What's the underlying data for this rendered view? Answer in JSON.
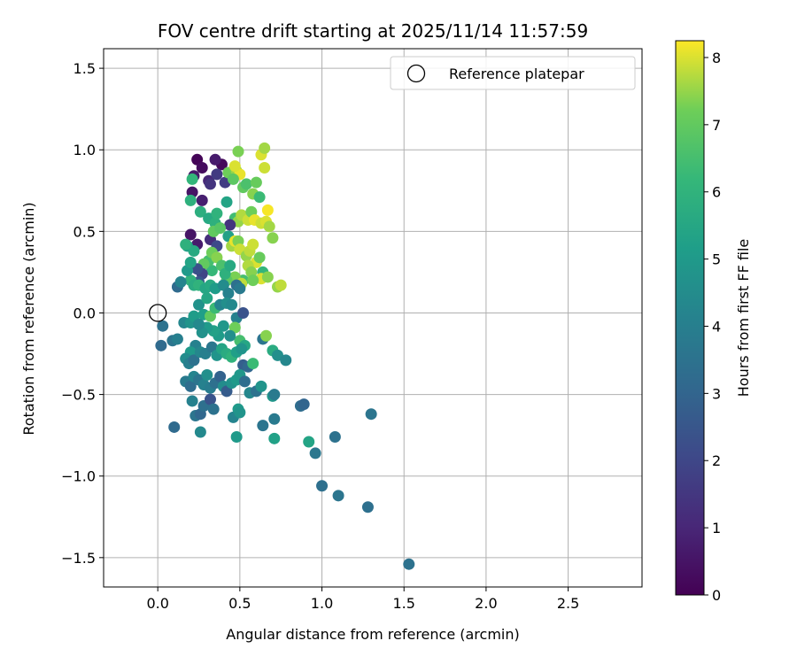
{
  "chart_data": {
    "type": "scatter",
    "title": "FOV centre drift starting at 2025/11/14 11:57:59",
    "xlabel": "Angular distance from reference (arcmin)",
    "ylabel": "Rotation from reference (arcmin)",
    "xlim": [
      -0.33,
      2.95
    ],
    "ylim": [
      -1.68,
      1.62
    ],
    "xticks": [
      0.0,
      0.5,
      1.0,
      1.5,
      2.0,
      2.5
    ],
    "xtick_labels": [
      "0.0",
      "0.5",
      "1.0",
      "1.5",
      "2.0",
      "2.5"
    ],
    "yticks": [
      -1.5,
      -1.0,
      -0.5,
      0.0,
      0.5,
      1.0,
      1.5
    ],
    "ytick_labels": [
      "−1.5",
      "−1.0",
      "−0.5",
      "0.0",
      "0.5",
      "1.0",
      "1.5"
    ],
    "grid": true,
    "legend": {
      "label": "Reference platepar",
      "location": "top-right"
    },
    "reference_point": {
      "x": 0.0,
      "y": 0.0
    },
    "colorbar": {
      "label": "Hours from first FF file",
      "min": 0,
      "max": 8.25,
      "ticks": [
        0,
        1,
        2,
        3,
        4,
        5,
        6,
        7,
        8
      ],
      "tick_labels": [
        "0",
        "1",
        "2",
        "3",
        "4",
        "5",
        "6",
        "7",
        "8"
      ],
      "colormap": "viridis"
    },
    "points": [
      [
        0.24,
        0.94,
        0.1
      ],
      [
        0.27,
        0.89,
        0.3
      ],
      [
        0.39,
        0.91,
        0.2
      ],
      [
        0.35,
        0.94,
        0.7
      ],
      [
        0.22,
        0.84,
        0.6
      ],
      [
        0.31,
        0.81,
        1.0
      ],
      [
        0.21,
        0.74,
        0.5
      ],
      [
        0.27,
        0.69,
        0.8
      ],
      [
        0.32,
        0.79,
        1.4
      ],
      [
        0.36,
        0.85,
        1.6
      ],
      [
        0.41,
        0.8,
        1.7
      ],
      [
        0.43,
        0.86,
        7.2
      ],
      [
        0.49,
        0.99,
        7.3
      ],
      [
        0.48,
        0.87,
        7.5
      ],
      [
        0.5,
        0.85,
        8.1
      ],
      [
        0.46,
        0.82,
        6.9
      ],
      [
        0.47,
        0.9,
        8.0
      ],
      [
        0.52,
        0.77,
        7.0
      ],
      [
        0.54,
        0.79,
        6.6
      ],
      [
        0.58,
        0.73,
        7.4
      ],
      [
        0.6,
        0.8,
        7.1
      ],
      [
        0.63,
        0.97,
        8.0
      ],
      [
        0.65,
        1.01,
        7.6
      ],
      [
        0.65,
        0.89,
        7.9
      ],
      [
        0.62,
        0.71,
        6.3
      ],
      [
        0.21,
        0.82,
        6.1
      ],
      [
        0.2,
        0.69,
        5.9
      ],
      [
        0.26,
        0.62,
        5.8
      ],
      [
        0.31,
        0.58,
        5.6
      ],
      [
        0.35,
        0.55,
        5.9
      ],
      [
        0.36,
        0.61,
        6.0
      ],
      [
        0.42,
        0.68,
        5.4
      ],
      [
        0.47,
        0.58,
        6.4
      ],
      [
        0.49,
        0.56,
        7.5
      ],
      [
        0.51,
        0.6,
        7.7
      ],
      [
        0.44,
        0.54,
        1.4
      ],
      [
        0.55,
        0.57,
        7.9
      ],
      [
        0.57,
        0.62,
        7.2
      ],
      [
        0.59,
        0.57,
        8.1
      ],
      [
        0.63,
        0.55,
        7.9
      ],
      [
        0.66,
        0.56,
        8.0
      ],
      [
        0.68,
        0.53,
        7.6
      ],
      [
        0.7,
        0.46,
        7.4
      ],
      [
        0.67,
        0.63,
        8.2
      ],
      [
        0.2,
        0.48,
        0.5
      ],
      [
        0.24,
        0.42,
        0.7
      ],
      [
        0.32,
        0.45,
        1.2
      ],
      [
        0.36,
        0.41,
        2.1
      ],
      [
        0.34,
        0.5,
        7.0
      ],
      [
        0.38,
        0.52,
        6.8
      ],
      [
        0.43,
        0.47,
        5.3
      ],
      [
        0.45,
        0.41,
        7.6
      ],
      [
        0.47,
        0.44,
        8.1
      ],
      [
        0.49,
        0.44,
        7.3
      ],
      [
        0.5,
        0.39,
        7.9
      ],
      [
        0.54,
        0.35,
        7.5
      ],
      [
        0.56,
        0.38,
        7.8
      ],
      [
        0.58,
        0.42,
        7.9
      ],
      [
        0.6,
        0.31,
        8.0
      ],
      [
        0.62,
        0.34,
        7.1
      ],
      [
        0.64,
        0.25,
        6.1
      ],
      [
        0.55,
        0.29,
        7.7
      ],
      [
        0.52,
        0.2,
        6.5
      ],
      [
        0.57,
        0.25,
        7.4
      ],
      [
        0.63,
        0.21,
        8.0
      ],
      [
        0.67,
        0.22,
        7.4
      ],
      [
        0.58,
        0.2,
        7.2
      ],
      [
        0.47,
        0.22,
        7.3
      ],
      [
        0.51,
        0.18,
        7.8
      ],
      [
        0.42,
        0.2,
        6.9
      ],
      [
        0.33,
        0.26,
        6.2
      ],
      [
        0.31,
        0.32,
        6.5
      ],
      [
        0.28,
        0.3,
        7.0
      ],
      [
        0.33,
        0.37,
        7.2
      ],
      [
        0.36,
        0.34,
        7.4
      ],
      [
        0.39,
        0.29,
        6.6
      ],
      [
        0.41,
        0.24,
        5.9
      ],
      [
        0.44,
        0.29,
        5.6
      ],
      [
        0.27,
        0.24,
        1.9
      ],
      [
        0.24,
        0.27,
        2.3
      ],
      [
        0.25,
        0.19,
        2.5
      ],
      [
        0.2,
        0.2,
        6.0
      ],
      [
        0.22,
        0.17,
        5.7
      ],
      [
        0.25,
        0.17,
        6.0
      ],
      [
        0.29,
        0.15,
        5.5
      ],
      [
        0.32,
        0.17,
        5.6
      ],
      [
        0.35,
        0.15,
        5.1
      ],
      [
        0.4,
        0.17,
        4.5
      ],
      [
        0.43,
        0.12,
        4.1
      ],
      [
        0.48,
        0.17,
        3.4
      ],
      [
        0.5,
        0.15,
        3.8
      ],
      [
        0.12,
        0.16,
        3.2
      ],
      [
        0.14,
        0.19,
        4.2
      ],
      [
        0.18,
        0.26,
        5.0
      ],
      [
        0.2,
        0.31,
        5.4
      ],
      [
        0.18,
        0.41,
        5.2
      ],
      [
        0.22,
        0.38,
        5.6
      ],
      [
        0.17,
        0.42,
        5.9
      ],
      [
        0.73,
        0.16,
        7.5
      ],
      [
        0.75,
        0.17,
        7.8
      ],
      [
        0.03,
        -0.08,
        3.5
      ],
      [
        0.02,
        -0.2,
        3.2
      ],
      [
        0.09,
        -0.17,
        3.6
      ],
      [
        0.12,
        -0.16,
        4.0
      ],
      [
        0.16,
        -0.06,
        4.3
      ],
      [
        0.2,
        -0.06,
        4.8
      ],
      [
        0.22,
        -0.02,
        5.1
      ],
      [
        0.25,
        0.05,
        4.7
      ],
      [
        0.28,
        -0.01,
        5.2
      ],
      [
        0.3,
        0.09,
        5.5
      ],
      [
        0.32,
        -0.02,
        7.0
      ],
      [
        0.35,
        0.03,
        6.3
      ],
      [
        0.38,
        0.05,
        4.2
      ],
      [
        0.42,
        0.06,
        4.6
      ],
      [
        0.45,
        0.05,
        4.4
      ],
      [
        0.48,
        -0.03,
        4.1
      ],
      [
        0.52,
        0.0,
        2.4
      ],
      [
        0.47,
        -0.09,
        7.2
      ],
      [
        0.5,
        -0.17,
        6.5
      ],
      [
        0.53,
        -0.2,
        5.5
      ],
      [
        0.44,
        -0.14,
        4.6
      ],
      [
        0.4,
        -0.08,
        4.9
      ],
      [
        0.37,
        -0.14,
        5.1
      ],
      [
        0.34,
        -0.11,
        5.3
      ],
      [
        0.3,
        -0.09,
        5.0
      ],
      [
        0.27,
        -0.12,
        4.7
      ],
      [
        0.25,
        -0.07,
        4.4
      ],
      [
        0.23,
        -0.2,
        4.1
      ],
      [
        0.2,
        -0.24,
        5.0
      ],
      [
        0.17,
        -0.28,
        4.5
      ],
      [
        0.19,
        -0.31,
        4.0
      ],
      [
        0.22,
        -0.29,
        3.5
      ],
      [
        0.26,
        -0.24,
        4.3
      ],
      [
        0.29,
        -0.25,
        4.0
      ],
      [
        0.33,
        -0.21,
        3.7
      ],
      [
        0.36,
        -0.26,
        4.8
      ],
      [
        0.39,
        -0.22,
        5.4
      ],
      [
        0.42,
        -0.25,
        5.7
      ],
      [
        0.45,
        -0.27,
        6.0
      ],
      [
        0.48,
        -0.24,
        5.2
      ],
      [
        0.51,
        -0.22,
        4.8
      ],
      [
        0.52,
        -0.32,
        2.8
      ],
      [
        0.55,
        -0.33,
        3.1
      ],
      [
        0.58,
        -0.31,
        6.3
      ],
      [
        0.64,
        -0.16,
        3.6
      ],
      [
        0.66,
        -0.14,
        7.4
      ],
      [
        0.7,
        -0.23,
        5.7
      ],
      [
        0.73,
        -0.26,
        4.6
      ],
      [
        0.78,
        -0.29,
        4.3
      ],
      [
        0.17,
        -0.42,
        3.8
      ],
      [
        0.2,
        -0.45,
        3.3
      ],
      [
        0.22,
        -0.39,
        4.2
      ],
      [
        0.25,
        -0.41,
        3.6
      ],
      [
        0.28,
        -0.44,
        4.1
      ],
      [
        0.3,
        -0.38,
        4.6
      ],
      [
        0.32,
        -0.46,
        3.9
      ],
      [
        0.35,
        -0.43,
        3.4
      ],
      [
        0.38,
        -0.39,
        2.9
      ],
      [
        0.4,
        -0.45,
        4.5
      ],
      [
        0.42,
        -0.48,
        2.7
      ],
      [
        0.45,
        -0.43,
        4.7
      ],
      [
        0.48,
        -0.41,
        5.0
      ],
      [
        0.5,
        -0.38,
        4.9
      ],
      [
        0.53,
        -0.42,
        3.3
      ],
      [
        0.56,
        -0.49,
        4.3
      ],
      [
        0.6,
        -0.48,
        3.5
      ],
      [
        0.63,
        -0.45,
        4.8
      ],
      [
        0.7,
        -0.51,
        4.9
      ],
      [
        0.71,
        -0.5,
        3.8
      ],
      [
        0.87,
        -0.57,
        3.3
      ],
      [
        0.89,
        -0.56,
        3.0
      ],
      [
        0.21,
        -0.54,
        4.1
      ],
      [
        0.23,
        -0.63,
        3.6
      ],
      [
        0.26,
        -0.62,
        3.1
      ],
      [
        0.28,
        -0.57,
        3.4
      ],
      [
        0.32,
        -0.53,
        2.4
      ],
      [
        0.34,
        -0.59,
        3.5
      ],
      [
        0.46,
        -0.64,
        4.2
      ],
      [
        0.49,
        -0.59,
        5.0
      ],
      [
        0.5,
        -0.61,
        4.8
      ],
      [
        0.48,
        -0.76,
        5.0
      ],
      [
        0.64,
        -0.69,
        3.6
      ],
      [
        0.71,
        -0.65,
        3.8
      ],
      [
        0.71,
        -0.77,
        5.3
      ],
      [
        0.26,
        -0.73,
        4.4
      ],
      [
        0.1,
        -0.7,
        3.2
      ],
      [
        0.92,
        -0.79,
        5.4
      ],
      [
        0.96,
        -0.86,
        3.7
      ],
      [
        1.08,
        -0.76,
        3.5
      ],
      [
        1.3,
        -0.62,
        3.6
      ],
      [
        1.0,
        -1.06,
        3.4
      ],
      [
        1.1,
        -1.12,
        3.6
      ],
      [
        1.28,
        -1.19,
        3.4
      ],
      [
        1.53,
        -1.54,
        3.5
      ]
    ]
  }
}
